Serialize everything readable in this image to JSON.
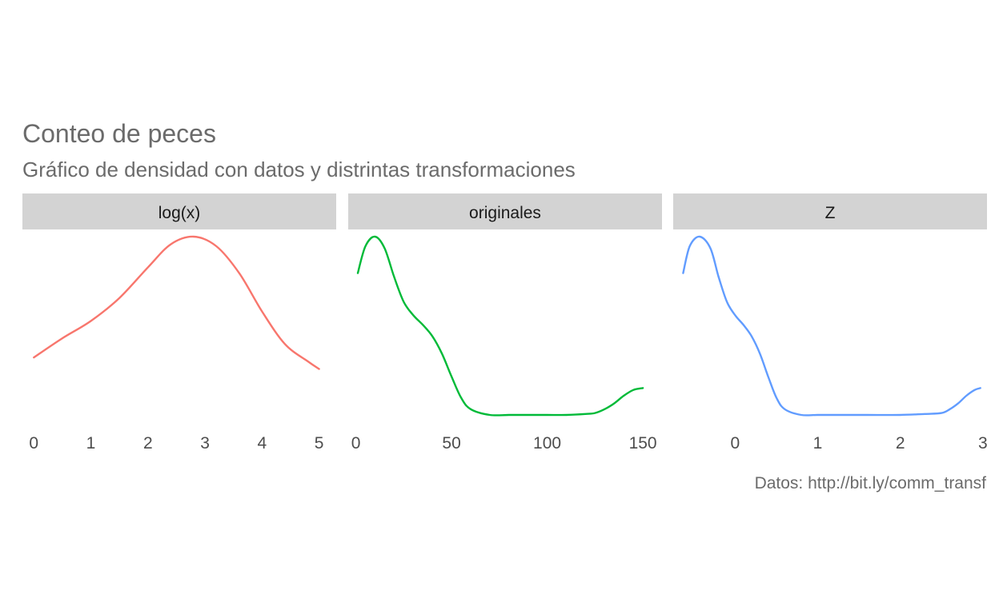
{
  "chart_data": {
    "type": "line",
    "title": "Conteo de peces",
    "subtitle": "Gráfico de densidad con datos y distrintas transformaciones",
    "caption": "Datos: http://bit.ly/comm_transf",
    "xlabel": "",
    "ylabel": "",
    "grid": false,
    "legend": "none",
    "y_axis_shown": false,
    "facets": [
      {
        "label": "log(x)",
        "color": "#F8766D",
        "xlim": [
          -0.2,
          5.3
        ],
        "xticks": [
          0,
          1,
          2,
          3,
          4,
          5
        ],
        "tick_labels": [
          "0",
          "1",
          "2",
          "3",
          "4",
          "5"
        ],
        "series": {
          "name": "log(x)",
          "x": [
            0.0,
            0.5,
            1.0,
            1.5,
            2.0,
            2.4,
            2.8,
            3.2,
            3.6,
            4.0,
            4.4,
            4.8,
            5.0
          ],
          "y": [
            0.3,
            0.4,
            0.49,
            0.61,
            0.77,
            0.89,
            0.93,
            0.88,
            0.74,
            0.54,
            0.37,
            0.28,
            0.24
          ]
        }
      },
      {
        "label": "originales",
        "color": "#00BA38",
        "xlim": [
          -4,
          160
        ],
        "xticks": [
          0,
          50,
          100,
          150
        ],
        "tick_labels": [
          "0",
          "50",
          "100",
          "150"
        ],
        "series": {
          "name": "originales",
          "x": [
            1,
            5,
            10,
            15,
            20,
            25,
            30,
            35,
            40,
            45,
            50,
            55,
            60,
            70,
            80,
            90,
            100,
            110,
            120,
            125,
            130,
            135,
            140,
            145,
            150
          ],
          "y": [
            0.74,
            0.88,
            0.93,
            0.87,
            0.72,
            0.59,
            0.52,
            0.47,
            0.41,
            0.32,
            0.2,
            0.09,
            0.03,
            0.0,
            0.0,
            0.0,
            0.0,
            0.0,
            0.005,
            0.01,
            0.03,
            0.06,
            0.1,
            0.13,
            0.14
          ]
        }
      },
      {
        "label": "Z",
        "color": "#619CFF",
        "xlim": [
          -0.75,
          3.05
        ],
        "xticks": [
          0,
          1,
          2,
          3
        ],
        "tick_labels": [
          "0",
          "1",
          "2",
          "3"
        ],
        "series": {
          "name": "Z",
          "x": [
            -0.63,
            -0.55,
            -0.43,
            -0.3,
            -0.2,
            -0.1,
            0.0,
            0.1,
            0.2,
            0.3,
            0.4,
            0.5,
            0.6,
            0.8,
            1.0,
            1.3,
            1.6,
            2.0,
            2.3,
            2.5,
            2.6,
            2.7,
            2.8,
            2.9,
            2.97
          ],
          "y": [
            0.74,
            0.88,
            0.93,
            0.87,
            0.72,
            0.59,
            0.52,
            0.47,
            0.41,
            0.32,
            0.2,
            0.09,
            0.03,
            0.0,
            0.0,
            0.0,
            0.0,
            0.0,
            0.005,
            0.01,
            0.03,
            0.06,
            0.1,
            0.13,
            0.14
          ]
        }
      }
    ]
  },
  "style": {
    "title_color": "#6b6b6b",
    "strip_background": "#d3d3d3",
    "background": "#ffffff"
  }
}
